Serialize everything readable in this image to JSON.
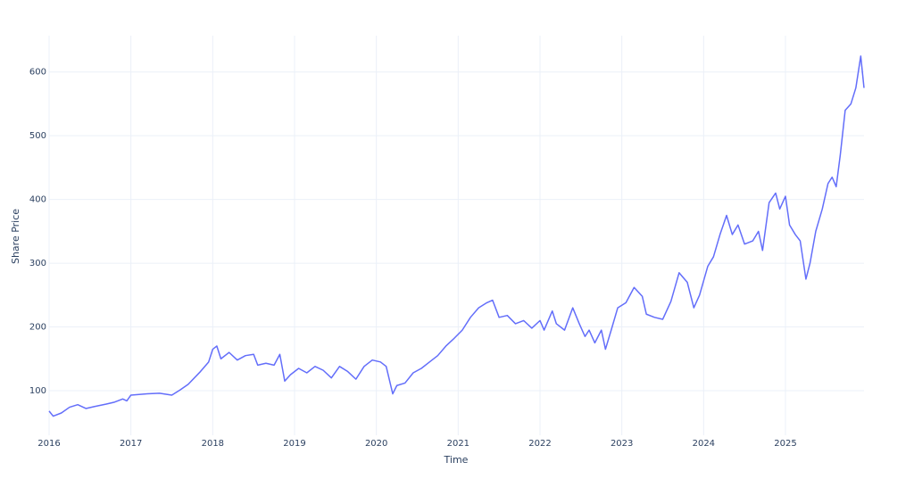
{
  "chart_data": {
    "type": "line",
    "x_label": "Time",
    "y_label": "Share Price",
    "grid": true,
    "xlim": [
      2016,
      2025.96
    ],
    "xticks": [
      2016,
      2017,
      2018,
      2019,
      2020,
      2021,
      2022,
      2023,
      2024,
      2025
    ],
    "ylim": [
      30,
      657
    ],
    "yticks": [
      100,
      200,
      300,
      400,
      500,
      600
    ],
    "series": [
      {
        "color": "#636efa",
        "x": [
          2016.0,
          2016.05,
          2016.15,
          2016.25,
          2016.35,
          2016.45,
          2016.55,
          2016.7,
          2016.8,
          2016.9,
          2016.95,
          2017.0,
          2017.2,
          2017.35,
          2017.5,
          2017.6,
          2017.7,
          2017.85,
          2017.95,
          2018.0,
          2018.05,
          2018.1,
          2018.2,
          2018.3,
          2018.4,
          2018.5,
          2018.55,
          2018.65,
          2018.75,
          2018.82,
          2018.88,
          2018.95,
          2019.05,
          2019.15,
          2019.25,
          2019.35,
          2019.45,
          2019.55,
          2019.65,
          2019.75,
          2019.85,
          2019.95,
          2020.05,
          2020.12,
          2020.2,
          2020.25,
          2020.35,
          2020.45,
          2020.55,
          2020.65,
          2020.75,
          2020.85,
          2020.95,
          2021.05,
          2021.15,
          2021.25,
          2021.35,
          2021.42,
          2021.5,
          2021.6,
          2021.7,
          2021.8,
          2021.9,
          2022.0,
          2022.05,
          2022.15,
          2022.2,
          2022.3,
          2022.4,
          2022.48,
          2022.55,
          2022.6,
          2022.67,
          2022.75,
          2022.8,
          2022.87,
          2022.95,
          2023.05,
          2023.15,
          2023.25,
          2023.3,
          2023.4,
          2023.5,
          2023.6,
          2023.7,
          2023.8,
          2023.88,
          2023.95,
          2024.05,
          2024.12,
          2024.2,
          2024.28,
          2024.35,
          2024.42,
          2024.5,
          2024.6,
          2024.67,
          2024.72,
          2024.8,
          2024.88,
          2024.93,
          2025.0,
          2025.05,
          2025.12,
          2025.18,
          2025.25,
          2025.3,
          2025.37,
          2025.45,
          2025.52,
          2025.57,
          2025.62,
          2025.67,
          2025.73,
          2025.8,
          2025.86,
          2025.92,
          2025.96
        ],
        "values": [
          68,
          60,
          65,
          74,
          78,
          72,
          75,
          79,
          82,
          87,
          84,
          93,
          95,
          96,
          93,
          101,
          110,
          130,
          145,
          165,
          170,
          150,
          160,
          148,
          155,
          157,
          140,
          143,
          140,
          157,
          115,
          125,
          135,
          128,
          138,
          132,
          120,
          138,
          130,
          118,
          138,
          148,
          145,
          138,
          95,
          108,
          112,
          128,
          135,
          145,
          155,
          170,
          182,
          195,
          215,
          230,
          238,
          242,
          215,
          218,
          205,
          210,
          198,
          210,
          195,
          225,
          205,
          195,
          230,
          205,
          185,
          195,
          175,
          195,
          165,
          195,
          230,
          238,
          262,
          248,
          220,
          215,
          212,
          240,
          285,
          270,
          230,
          250,
          295,
          310,
          345,
          375,
          345,
          360,
          330,
          335,
          350,
          320,
          395,
          410,
          385,
          405,
          360,
          345,
          335,
          275,
          300,
          350,
          385,
          425,
          435,
          420,
          470,
          540,
          550,
          575,
          625,
          575
        ]
      }
    ]
  }
}
